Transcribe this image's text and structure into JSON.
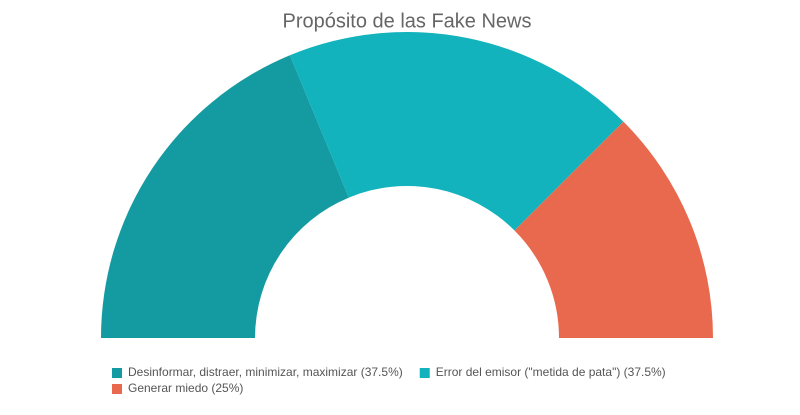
{
  "chart_data": {
    "type": "pie",
    "semicircle": true,
    "donut": true,
    "title": "Propósito de las Fake News",
    "categories": [
      "Desinformar, distraer, minimizar, maximizar (37.5%)",
      "Error del emisor (\"metida de pata\") (37.5%)",
      "Generar miedo (25%)"
    ],
    "values": [
      37.5,
      37.5,
      25
    ],
    "colors": [
      "#139ba1",
      "#12b3bc",
      "#e8694d"
    ],
    "legend": "bottom-left"
  }
}
